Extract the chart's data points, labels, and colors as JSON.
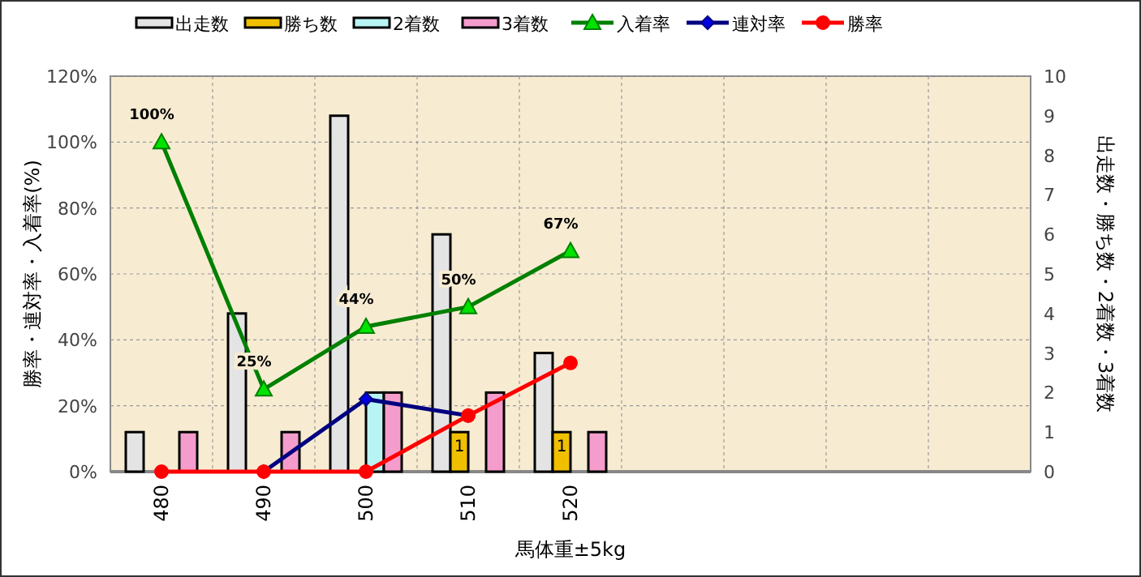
{
  "chart_data": {
    "type": "bar",
    "xlabel": "馬体重±5kg",
    "ylabel": "勝率・連対率・入着率(%)",
    "y2label": "出走数・勝ち数・2着数・3着数",
    "categories": [
      "480",
      "490",
      "500",
      "510",
      "520",
      null,
      null,
      null,
      null
    ],
    "series": [
      {
        "name": "出走数",
        "axis": "y2",
        "color": "#e4e4e4",
        "values": [
          1,
          4,
          9,
          6,
          3,
          null,
          null,
          null,
          null
        ]
      },
      {
        "name": "勝ち数",
        "axis": "y2",
        "color": "#f0c000",
        "values": [
          0,
          0,
          0,
          1,
          1,
          null,
          null,
          null,
          null
        ],
        "value_labels": [
          null,
          null,
          null,
          "1",
          "1",
          null,
          null,
          null,
          null
        ]
      },
      {
        "name": "2着数",
        "axis": "y2",
        "color": "#b8f4f4",
        "values": [
          0,
          0,
          2,
          0,
          0,
          null,
          null,
          null,
          null
        ]
      },
      {
        "name": "3着数",
        "axis": "y2",
        "color": "#f49ccc",
        "values": [
          1,
          1,
          2,
          2,
          1,
          null,
          null,
          null,
          null
        ]
      },
      {
        "name": "入着率",
        "type": "line",
        "color": "#008000",
        "marker": "triangle",
        "values": [
          100,
          25,
          44,
          50,
          67,
          null,
          null,
          null,
          null
        ],
        "value_labels": [
          "100%",
          "25%",
          "44%",
          "50%",
          "67%",
          null,
          null,
          null,
          null
        ]
      },
      {
        "name": "連対率",
        "type": "line",
        "color": "#000080",
        "marker": "diamond",
        "values": [
          null,
          0,
          22,
          17,
          null,
          null,
          null,
          null,
          null
        ]
      },
      {
        "name": "勝率",
        "type": "line",
        "color": "#ff0000",
        "marker": "circle",
        "values": [
          0,
          0,
          0,
          17,
          33,
          null,
          null,
          null,
          null
        ]
      }
    ],
    "ylim": [
      0,
      120
    ],
    "yticks": [
      {
        "value": 0,
        "label": "0%"
      },
      {
        "value": 20,
        "label": "20%"
      },
      {
        "value": 40,
        "label": "40%"
      },
      {
        "value": 60,
        "label": "60%"
      },
      {
        "value": 80,
        "label": "80%"
      },
      {
        "value": 100,
        "label": "100%"
      },
      {
        "value": 120,
        "label": "120%"
      }
    ],
    "y2lim": [
      0,
      10
    ],
    "y2ticks": [
      0,
      1,
      2,
      3,
      4,
      5,
      6,
      7,
      8,
      9,
      10
    ],
    "grid": true,
    "legend": "top"
  }
}
